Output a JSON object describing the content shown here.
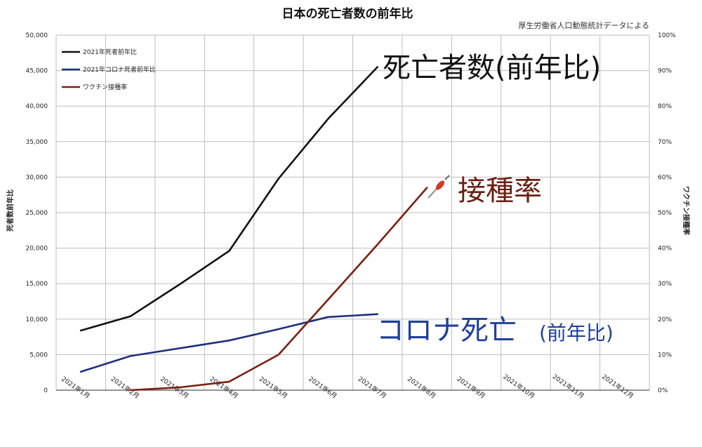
{
  "chart_data": {
    "type": "line",
    "title": "日本の死亡者数の前年比",
    "subtitle": "厚生労働省人口動態統計データによる",
    "ylabel_left": "死者数前年比",
    "ylabel_right": "ワクチン接種率",
    "categories": [
      "2021年1月",
      "2021年2月",
      "2021年3月",
      "2021年4月",
      "2021年5月",
      "2021年6月",
      "2021年7月",
      "2021年8月",
      "2021年9月",
      "2021年10月",
      "2021年11月",
      "2021年12月"
    ],
    "y_left_ticks": [
      "0",
      "5,000",
      "10,000",
      "15,000",
      "20,000",
      "25,000",
      "30,000",
      "35,000",
      "40,000",
      "45,000",
      "50,000"
    ],
    "y_right_ticks": [
      "0%",
      "10%",
      "20%",
      "30%",
      "40%",
      "50%",
      "60%",
      "70%",
      "80%",
      "90%",
      "100%"
    ],
    "ylim_left": [
      0,
      50000
    ],
    "ylim_right": [
      0,
      100
    ],
    "grid": true,
    "legend_position": "top-left",
    "series": [
      {
        "name": "2021年死者前年比",
        "axis": "left",
        "color": "#111111",
        "points": [
          [
            0,
            8400
          ],
          [
            1,
            10400
          ],
          [
            2,
            14900
          ],
          [
            3,
            19600
          ],
          [
            4,
            29800
          ],
          [
            5,
            38200
          ],
          [
            6,
            45500
          ]
        ]
      },
      {
        "name": "2021年コロナ死者前年比",
        "axis": "left",
        "color": "#1f2f7a",
        "points": [
          [
            0,
            2600
          ],
          [
            1,
            4800
          ],
          [
            2,
            5900
          ],
          [
            3,
            7000
          ],
          [
            4,
            8600
          ],
          [
            5,
            10300
          ],
          [
            6,
            10700
          ]
        ]
      },
      {
        "name": "ワクチン接種率",
        "axis": "right",
        "color": "#7a1f12",
        "points": [
          [
            1,
            0
          ],
          [
            2,
            0.8
          ],
          [
            3,
            2.4
          ],
          [
            4,
            10
          ],
          [
            5,
            25.5
          ],
          [
            6,
            41
          ],
          [
            7,
            57
          ]
        ]
      }
    ],
    "annotations": [
      {
        "text": "死亡者数(前年比)",
        "color": "#111111"
      },
      {
        "text": "接種率",
        "color": "#6b1d10"
      },
      {
        "text": "コロナ死亡",
        "color": "#1f3f9a"
      },
      {
        "text": "(前年比)",
        "color": "#1f3f9a"
      }
    ]
  }
}
